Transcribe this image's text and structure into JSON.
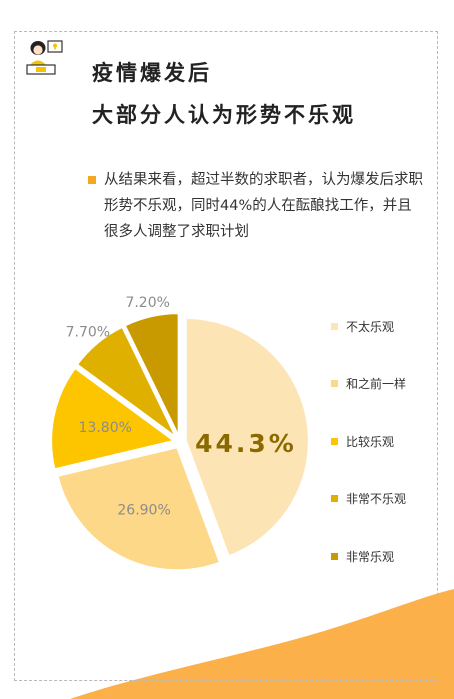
{
  "header": {
    "title_line1": "疫情爆发后",
    "title_line2": "大部分人认为形势不乐观"
  },
  "summary": {
    "text": "从结果来看，超过半数的求职者，认为爆发后求职形势不乐观，同时44%的人在酝酿找工作，并且很多人调整了求职计划"
  },
  "colors": {
    "accent": "#f5a623",
    "center_label": "#8a6a00",
    "slice_label": "#8c8c8c"
  },
  "icons": {
    "avatar": "person-at-laptop-icon"
  },
  "chart_data": {
    "type": "pie",
    "center_label": "44.3%",
    "legend_position": "right",
    "slices": [
      {
        "name": "不太乐观",
        "value": 44.3,
        "label": "",
        "color": "#fde4b4"
      },
      {
        "name": "和之前一样",
        "value": 26.9,
        "label": "26.90%",
        "color": "#fdd888"
      },
      {
        "name": "比较乐观",
        "value": 13.8,
        "label": "13.80%",
        "color": "#fcc500"
      },
      {
        "name": "非常不乐观",
        "value": 7.7,
        "label": "7.70%",
        "color": "#e0b000"
      },
      {
        "name": "非常乐观",
        "value": 7.2,
        "label": "7.20%",
        "color": "#c89a00"
      }
    ]
  }
}
